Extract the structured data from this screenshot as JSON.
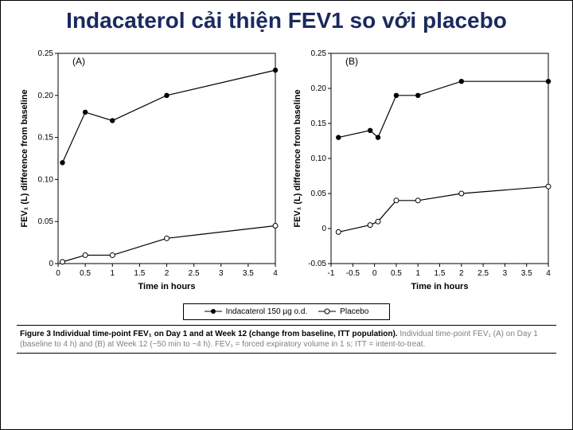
{
  "title": "Indacaterol cải thiện FEV1 so với placebo",
  "legend": {
    "series1": "Indacaterol 150 µg o.d.",
    "series2": "Placebo"
  },
  "caption_bold": "Figure 3 Individual time-point FEV₁ on Day 1 and at Week 12 (change from baseline, ITT population).",
  "caption_grey": " Individual time-point FEV₁ (A) on Day 1 (baseline to 4 h) and (B) at Week 12 (−50 min to −4 h). FEV₁ = forced expiratory volume in 1 s; ITT = intent-to-treat.",
  "chartA": {
    "label": "(A)",
    "y_title": "FEV₁ (L) difference from baseline",
    "x_title": "Time in hours",
    "xlim": [
      0,
      4
    ],
    "ylim": [
      0,
      0.25
    ],
    "xticks": [
      0,
      0.5,
      1,
      1.5,
      2,
      2.5,
      3,
      3.5,
      4
    ],
    "yticks": [
      0,
      0.05,
      0.1,
      0.15,
      0.2,
      0.25
    ],
    "ind": {
      "x": [
        0.08,
        0.5,
        1,
        2,
        4
      ],
      "y": [
        0.12,
        0.18,
        0.17,
        0.2,
        0.23
      ]
    },
    "pla": {
      "x": [
        0.08,
        0.5,
        1,
        2,
        4
      ],
      "y": [
        0.002,
        0.01,
        0.01,
        0.03,
        0.045
      ]
    }
  },
  "chartB": {
    "label": "(B)",
    "y_title": "FEV₁ (L) difference from baseline",
    "x_title": "Time in hours",
    "xlim": [
      -1,
      4
    ],
    "ylim": [
      -0.05,
      0.25
    ],
    "xticks": [
      -1,
      -0.5,
      0,
      0.5,
      1,
      1.5,
      2,
      2.5,
      3,
      3.5,
      4
    ],
    "yticks": [
      -0.05,
      0,
      0.05,
      0.1,
      0.15,
      0.2,
      0.25
    ],
    "ind": {
      "x": [
        -0.83,
        -0.1,
        0.08,
        0.5,
        1,
        2,
        4
      ],
      "y": [
        0.13,
        0.14,
        0.13,
        0.19,
        0.19,
        0.21,
        0.21
      ]
    },
    "pla": {
      "x": [
        -0.83,
        -0.1,
        0.08,
        0.5,
        1,
        2,
        4
      ],
      "y": [
        -0.005,
        0.005,
        0.01,
        0.04,
        0.04,
        0.05,
        0.06
      ]
    }
  },
  "style": {
    "axis_color": "#000000",
    "line_width": 1.2,
    "marker_r_filled": 3.2,
    "marker_r_open": 3.0,
    "ind_color": "#000000",
    "pla_stroke": "#000000",
    "pla_fill": "#ffffff",
    "title_color": "#1a2a5e",
    "bg": "#ffffff",
    "axis_fontsize": 10,
    "title_fontsize": 28,
    "label_fontsize": 11
  }
}
